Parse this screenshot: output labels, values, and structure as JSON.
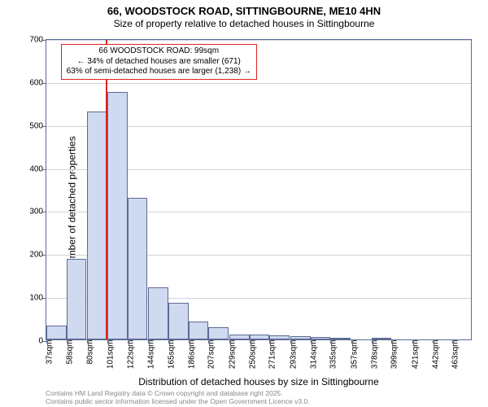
{
  "title": "66, WOODSTOCK ROAD, SITTINGBOURNE, ME10 4HN",
  "subtitle": "Size of property relative to detached houses in Sittingbourne",
  "y_axis": {
    "label": "Number of detached properties",
    "min": 0,
    "max": 700,
    "ticks": [
      0,
      100,
      200,
      300,
      400,
      500,
      600,
      700
    ]
  },
  "x_axis": {
    "label": "Distribution of detached houses by size in Sittingbourne",
    "unit_suffix": "sqm",
    "tick_sqm": [
      37,
      58,
      80,
      101,
      122,
      144,
      165,
      186,
      207,
      229,
      250,
      271,
      293,
      314,
      335,
      357,
      378,
      399,
      421,
      442,
      463
    ]
  },
  "bars": {
    "fill": "#cfd9ef",
    "stroke": "#5b6b94",
    "min_sqm": 37,
    "max_sqm": 484,
    "heights": [
      32,
      188,
      530,
      575,
      330,
      122,
      85,
      42,
      28,
      12,
      12,
      10,
      8,
      5,
      2,
      0,
      2,
      0,
      0,
      0,
      0
    ]
  },
  "marker": {
    "sqm": 99,
    "color": "#d22"
  },
  "callout": {
    "line1": "66 WOODSTOCK ROAD: 99sqm",
    "line2": "← 34% of detached houses are smaller (671)",
    "line3": "63% of semi-detached houses are larger (1,238) →",
    "border": "#d22",
    "left_sqm": 52,
    "top_value": 690
  },
  "grid_color": "#cfd3de",
  "axis_color": "#5b6b94",
  "background": "#ffffff",
  "footer": {
    "line1": "Contains HM Land Registry data © Crown copyright and database right 2025.",
    "line2": "Contains public sector information licensed under the Open Government Licence v3.0."
  }
}
